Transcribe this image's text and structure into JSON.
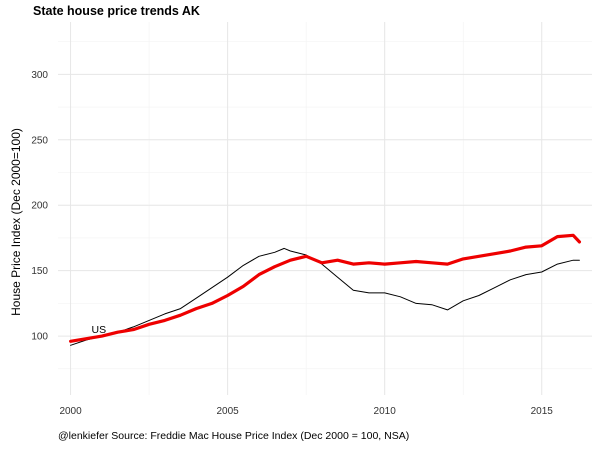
{
  "chart_data": {
    "type": "line",
    "title": "State house price trends AK",
    "xlabel": "",
    "ylabel": "House Price Index (Dec 2000=100)",
    "caption": "@lenkiefer Source: Freddie Mac House Price Index (Dec 2000 = 100, NSA)",
    "xlim": [
      1999.6,
      2016.6
    ],
    "ylim": [
      55,
      340
    ],
    "xticks": [
      2000,
      2005,
      2010,
      2015
    ],
    "yticks": [
      100,
      150,
      200,
      250,
      300
    ],
    "grid": true,
    "legend": "none",
    "annotations": [
      {
        "text": "US",
        "x": 2000.9,
        "y": 101
      }
    ],
    "series": [
      {
        "name": "US",
        "color": "#000000",
        "x": [
          2000.0,
          2000.5,
          2001.0,
          2001.5,
          2002.0,
          2002.5,
          2003.0,
          2003.5,
          2004.0,
          2004.5,
          2005.0,
          2005.5,
          2006.0,
          2006.5,
          2006.8,
          2007.0,
          2007.5,
          2008.0,
          2008.5,
          2009.0,
          2009.5,
          2010.0,
          2010.5,
          2011.0,
          2011.5,
          2012.0,
          2012.5,
          2013.0,
          2013.5,
          2014.0,
          2014.5,
          2015.0,
          2015.5,
          2016.0,
          2016.2
        ],
        "values": [
          93,
          97,
          100,
          103,
          107,
          112,
          117,
          121,
          129,
          137,
          145,
          154,
          161,
          164,
          167,
          165,
          162,
          155,
          145,
          135,
          133,
          133,
          130,
          125,
          124,
          120,
          127,
          131,
          137,
          143,
          147,
          149,
          155,
          158,
          158
        ]
      },
      {
        "name": "AK",
        "color": "#ee0000",
        "x": [
          2000.0,
          2000.5,
          2001.0,
          2001.5,
          2002.0,
          2002.5,
          2003.0,
          2003.5,
          2004.0,
          2004.5,
          2005.0,
          2005.5,
          2006.0,
          2006.5,
          2007.0,
          2007.5,
          2008.0,
          2008.5,
          2009.0,
          2009.5,
          2010.0,
          2010.5,
          2011.0,
          2011.5,
          2012.0,
          2012.5,
          2013.0,
          2013.5,
          2014.0,
          2014.5,
          2015.0,
          2015.5,
          2016.0,
          2016.2
        ],
        "values": [
          96,
          98,
          100,
          103,
          105,
          109,
          112,
          116,
          121,
          125,
          131,
          138,
          147,
          153,
          158,
          161,
          156,
          158,
          155,
          156,
          155,
          156,
          157,
          156,
          155,
          159,
          161,
          163,
          165,
          168,
          169,
          176,
          177,
          172
        ]
      }
    ]
  }
}
